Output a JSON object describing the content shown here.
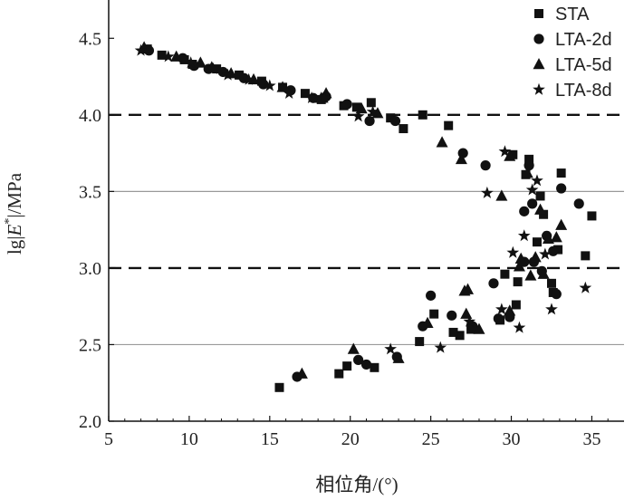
{
  "chart_data": {
    "type": "scatter",
    "title": "",
    "xlabel": "相位角/(°)",
    "ylabel_parts": {
      "pre": "lg|",
      "italic": "E",
      "sup": "*",
      "post": "|/MPa"
    },
    "xlim": [
      5,
      37
    ],
    "ylim": [
      2.0,
      4.75
    ],
    "xticks": [
      5,
      10,
      15,
      20,
      25,
      30,
      35
    ],
    "yticks": [
      2.0,
      2.5,
      3.0,
      3.5,
      4.0,
      4.5
    ],
    "xtick_labels": [
      "5",
      "10",
      "15",
      "20",
      "25",
      "30",
      "35"
    ],
    "ytick_labels": [
      "2.0",
      "2.5",
      "3.0",
      "3.5",
      "4.0",
      "4.5"
    ],
    "reference_lines": [
      {
        "y": 4.0,
        "style": "dashed"
      },
      {
        "y": 3.0,
        "style": "dashed"
      },
      {
        "y": 3.5,
        "style": "solid"
      },
      {
        "y": 2.5,
        "style": "solid"
      }
    ],
    "legend_position": "top-right",
    "series": [
      {
        "name": "STA",
        "marker": "square",
        "points": [
          [
            7.4,
            4.43
          ],
          [
            8.3,
            4.39
          ],
          [
            9.7,
            4.36
          ],
          [
            10.2,
            4.33
          ],
          [
            11.7,
            4.3
          ],
          [
            13.1,
            4.26
          ],
          [
            14.5,
            4.22
          ],
          [
            15.8,
            4.18
          ],
          [
            17.2,
            4.14
          ],
          [
            18.2,
            4.1
          ],
          [
            19.6,
            4.06
          ],
          [
            20.4,
            4.05
          ],
          [
            21.3,
            4.08
          ],
          [
            22.5,
            3.98
          ],
          [
            23.3,
            3.91
          ],
          [
            24.5,
            4.0
          ],
          [
            26.1,
            3.93
          ],
          [
            30.1,
            3.74
          ],
          [
            31.1,
            3.71
          ],
          [
            33.1,
            3.62
          ],
          [
            30.9,
            3.61
          ],
          [
            31.8,
            3.47
          ],
          [
            32.0,
            3.35
          ],
          [
            35.0,
            3.34
          ],
          [
            31.6,
            3.17
          ],
          [
            32.9,
            3.12
          ],
          [
            34.6,
            3.08
          ],
          [
            29.6,
            2.96
          ],
          [
            30.4,
            2.91
          ],
          [
            32.5,
            2.9
          ],
          [
            32.6,
            2.84
          ],
          [
            30.3,
            2.76
          ],
          [
            29.3,
            2.66
          ],
          [
            27.5,
            2.6
          ],
          [
            26.8,
            2.56
          ],
          [
            26.4,
            2.58
          ],
          [
            25.2,
            2.7
          ],
          [
            24.3,
            2.52
          ],
          [
            19.3,
            2.31
          ],
          [
            19.8,
            2.36
          ],
          [
            21.5,
            2.35
          ],
          [
            15.6,
            2.22
          ]
        ]
      },
      {
        "name": "LTA-2d",
        "marker": "circle",
        "points": [
          [
            7.5,
            4.42
          ],
          [
            9.6,
            4.37
          ],
          [
            10.3,
            4.32
          ],
          [
            11.2,
            4.3
          ],
          [
            12.1,
            4.28
          ],
          [
            13.4,
            4.24
          ],
          [
            14.6,
            4.2
          ],
          [
            16.3,
            4.16
          ],
          [
            17.7,
            4.11
          ],
          [
            18.5,
            4.12
          ],
          [
            19.8,
            4.07
          ],
          [
            21.2,
            3.96
          ],
          [
            22.8,
            3.96
          ],
          [
            27.0,
            3.75
          ],
          [
            28.4,
            3.67
          ],
          [
            31.1,
            3.67
          ],
          [
            33.1,
            3.52
          ],
          [
            34.2,
            3.42
          ],
          [
            31.3,
            3.42
          ],
          [
            30.8,
            3.37
          ],
          [
            32.2,
            3.21
          ],
          [
            31.4,
            3.04
          ],
          [
            32.6,
            3.11
          ],
          [
            30.8,
            3.04
          ],
          [
            31.9,
            2.98
          ],
          [
            25.0,
            2.82
          ],
          [
            28.9,
            2.9
          ],
          [
            32.8,
            2.83
          ],
          [
            29.2,
            2.67
          ],
          [
            29.9,
            2.68
          ],
          [
            27.6,
            2.62
          ],
          [
            26.3,
            2.69
          ],
          [
            24.5,
            2.62
          ],
          [
            20.5,
            2.4
          ],
          [
            21.0,
            2.37
          ],
          [
            22.9,
            2.42
          ],
          [
            16.7,
            2.29
          ]
        ]
      },
      {
        "name": "LTA-5d",
        "marker": "triangle",
        "points": [
          [
            7.2,
            4.44
          ],
          [
            9.2,
            4.38
          ],
          [
            10.7,
            4.34
          ],
          [
            11.4,
            4.31
          ],
          [
            12.6,
            4.27
          ],
          [
            14.0,
            4.23
          ],
          [
            15.8,
            4.18
          ],
          [
            18.5,
            4.14
          ],
          [
            18.2,
            4.11
          ],
          [
            20.7,
            4.04
          ],
          [
            21.7,
            4.01
          ],
          [
            25.7,
            3.82
          ],
          [
            26.9,
            3.71
          ],
          [
            29.9,
            3.73
          ],
          [
            31.0,
            3.62
          ],
          [
            29.4,
            3.47
          ],
          [
            31.8,
            3.38
          ],
          [
            33.1,
            3.28
          ],
          [
            32.3,
            3.19
          ],
          [
            32.8,
            3.2
          ],
          [
            30.6,
            3.06
          ],
          [
            31.5,
            3.07
          ],
          [
            30.5,
            3.01
          ],
          [
            32.0,
            2.96
          ],
          [
            31.2,
            2.95
          ],
          [
            27.3,
            2.86
          ],
          [
            27.1,
            2.85
          ],
          [
            27.2,
            2.7
          ],
          [
            29.9,
            2.72
          ],
          [
            28.0,
            2.6
          ],
          [
            24.8,
            2.64
          ],
          [
            20.2,
            2.47
          ],
          [
            23.0,
            2.41
          ],
          [
            17.0,
            2.31
          ]
        ]
      },
      {
        "name": "LTA-8d",
        "marker": "star",
        "points": [
          [
            7.0,
            4.42
          ],
          [
            8.7,
            4.38
          ],
          [
            10.1,
            4.34
          ],
          [
            11.5,
            4.3
          ],
          [
            12.4,
            4.26
          ],
          [
            13.7,
            4.23
          ],
          [
            15.0,
            4.19
          ],
          [
            16.2,
            4.14
          ],
          [
            17.6,
            4.11
          ],
          [
            18.4,
            4.11
          ],
          [
            20.5,
            3.99
          ],
          [
            21.4,
            4.02
          ],
          [
            29.6,
            3.76
          ],
          [
            28.5,
            3.49
          ],
          [
            31.3,
            3.51
          ],
          [
            31.6,
            3.57
          ],
          [
            32.1,
            3.09
          ],
          [
            30.8,
            3.21
          ],
          [
            30.1,
            3.1
          ],
          [
            34.6,
            2.87
          ],
          [
            32.5,
            2.73
          ],
          [
            30.5,
            2.61
          ],
          [
            27.4,
            2.65
          ],
          [
            29.4,
            2.73
          ],
          [
            25.6,
            2.48
          ],
          [
            22.5,
            2.47
          ]
        ]
      }
    ]
  }
}
